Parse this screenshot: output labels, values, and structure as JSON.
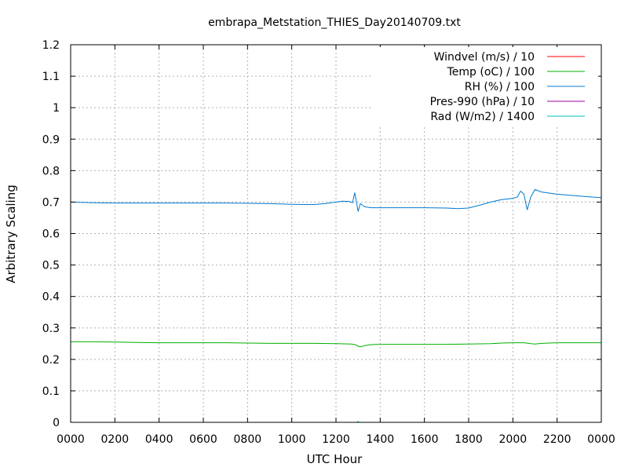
{
  "chart_data": {
    "type": "line",
    "title": "embrapa_Metstation_THIES_Day20140709.txt",
    "xlabel": "UTC Hour",
    "ylabel": "Arbitrary Scaling",
    "xlim": [
      0,
      24
    ],
    "ylim": [
      0,
      1.2
    ],
    "x_ticks": [
      {
        "value": 0,
        "label": "0000"
      },
      {
        "value": 2,
        "label": "0200"
      },
      {
        "value": 4,
        "label": "0400"
      },
      {
        "value": 6,
        "label": "0600"
      },
      {
        "value": 8,
        "label": "0800"
      },
      {
        "value": 10,
        "label": "1000"
      },
      {
        "value": 12,
        "label": "1200"
      },
      {
        "value": 14,
        "label": "1400"
      },
      {
        "value": 16,
        "label": "1600"
      },
      {
        "value": 18,
        "label": "1800"
      },
      {
        "value": 20,
        "label": "2000"
      },
      {
        "value": 22,
        "label": "2200"
      },
      {
        "value": 24,
        "label": "0000"
      }
    ],
    "y_ticks": [
      {
        "value": 0,
        "label": "0"
      },
      {
        "value": 0.1,
        "label": "0.1"
      },
      {
        "value": 0.2,
        "label": "0.2"
      },
      {
        "value": 0.3,
        "label": "0.3"
      },
      {
        "value": 0.4,
        "label": "0.4"
      },
      {
        "value": 0.5,
        "label": "0.5"
      },
      {
        "value": 0.6,
        "label": "0.6"
      },
      {
        "value": 0.7,
        "label": "0.7"
      },
      {
        "value": 0.8,
        "label": "0.8"
      },
      {
        "value": 0.9,
        "label": "0.9"
      },
      {
        "value": 1,
        "label": "1"
      },
      {
        "value": 1.1,
        "label": "1.1"
      },
      {
        "value": 1.2,
        "label": "1.2"
      }
    ],
    "grid": true,
    "legend_position": "top-right",
    "series": [
      {
        "name": "Windvel (m/s) / 10",
        "color": "#ff0000",
        "points": []
      },
      {
        "name": "Temp (oC) / 100",
        "color": "#00b000",
        "points": [
          [
            0,
            0.256
          ],
          [
            1,
            0.256
          ],
          [
            2,
            0.255
          ],
          [
            3,
            0.254
          ],
          [
            4,
            0.253
          ],
          [
            5,
            0.253
          ],
          [
            6,
            0.253
          ],
          [
            7,
            0.253
          ],
          [
            8,
            0.252
          ],
          [
            9,
            0.251
          ],
          [
            10,
            0.251
          ],
          [
            11,
            0.251
          ],
          [
            12,
            0.25
          ],
          [
            12.7,
            0.249
          ],
          [
            12.9,
            0.246
          ],
          [
            13.0,
            0.242
          ],
          [
            13.1,
            0.24
          ],
          [
            13.3,
            0.244
          ],
          [
            13.6,
            0.247
          ],
          [
            14,
            0.248
          ],
          [
            15,
            0.248
          ],
          [
            16,
            0.248
          ],
          [
            17,
            0.248
          ],
          [
            18,
            0.249
          ],
          [
            19,
            0.25
          ],
          [
            19.5,
            0.252
          ],
          [
            20,
            0.253
          ],
          [
            20.5,
            0.253
          ],
          [
            20.8,
            0.25
          ],
          [
            21,
            0.249
          ],
          [
            21.3,
            0.251
          ],
          [
            22,
            0.253
          ],
          [
            23,
            0.253
          ],
          [
            24,
            0.253
          ]
        ]
      },
      {
        "name": "RH (%) / 100",
        "color": "#0078d0",
        "points": [
          [
            0,
            0.7
          ],
          [
            1,
            0.698
          ],
          [
            2,
            0.697
          ],
          [
            3,
            0.697
          ],
          [
            4,
            0.697
          ],
          [
            5,
            0.697
          ],
          [
            6,
            0.697
          ],
          [
            7,
            0.697
          ],
          [
            8,
            0.696
          ],
          [
            9,
            0.695
          ],
          [
            10,
            0.693
          ],
          [
            11,
            0.692
          ],
          [
            11.5,
            0.695
          ],
          [
            12,
            0.7
          ],
          [
            12.3,
            0.703
          ],
          [
            12.6,
            0.702
          ],
          [
            12.75,
            0.698
          ],
          [
            12.85,
            0.73
          ],
          [
            12.95,
            0.69
          ],
          [
            13.0,
            0.67
          ],
          [
            13.1,
            0.695
          ],
          [
            13.3,
            0.685
          ],
          [
            13.6,
            0.682
          ],
          [
            14,
            0.682
          ],
          [
            15,
            0.682
          ],
          [
            16,
            0.682
          ],
          [
            17,
            0.681
          ],
          [
            17.5,
            0.679
          ],
          [
            18,
            0.681
          ],
          [
            18.5,
            0.69
          ],
          [
            19,
            0.7
          ],
          [
            19.5,
            0.708
          ],
          [
            20,
            0.712
          ],
          [
            20.2,
            0.716
          ],
          [
            20.35,
            0.735
          ],
          [
            20.5,
            0.725
          ],
          [
            20.65,
            0.675
          ],
          [
            20.8,
            0.715
          ],
          [
            21,
            0.74
          ],
          [
            21.3,
            0.732
          ],
          [
            22,
            0.725
          ],
          [
            23,
            0.719
          ],
          [
            24,
            0.714
          ]
        ]
      },
      {
        "name": "Pres-990 (hPa) / 10",
        "color": "#a000a0",
        "points": []
      },
      {
        "name": "Rad (W/m2) / 1400",
        "color": "#00c0c0",
        "points": [
          [
            12.95,
            0.0
          ],
          [
            13.0,
            0.003
          ],
          [
            13.05,
            0.0
          ]
        ]
      }
    ]
  }
}
